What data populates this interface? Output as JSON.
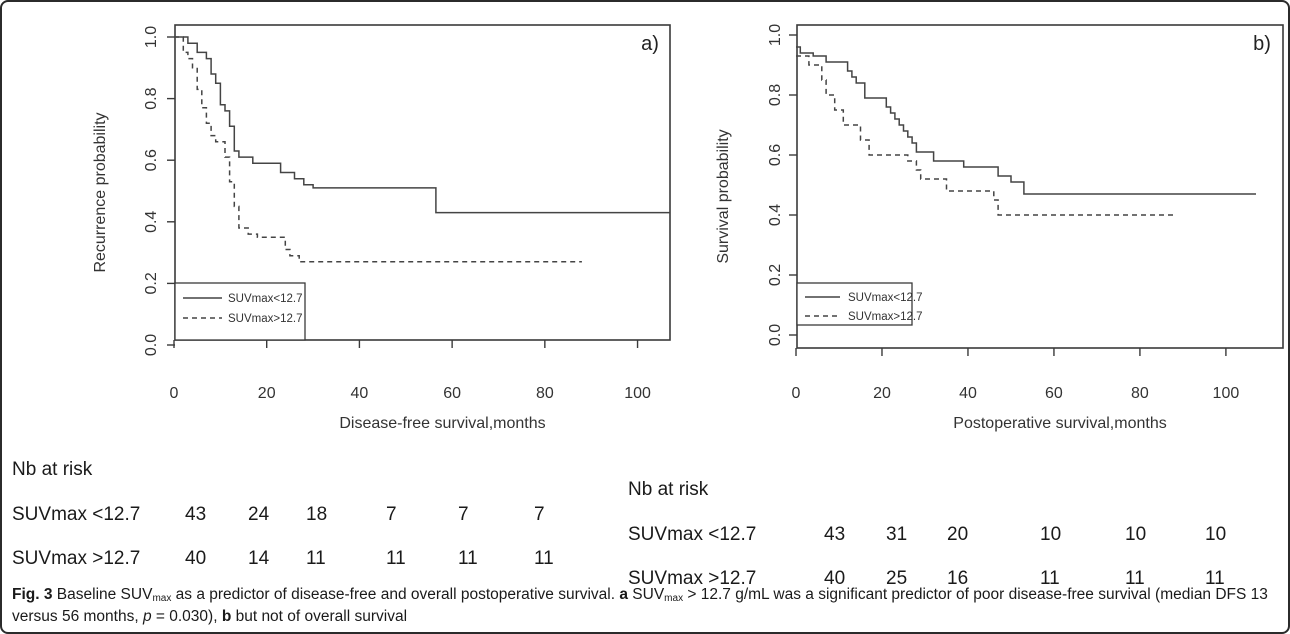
{
  "chart_data": [
    {
      "type": "line",
      "panel_label": "a)",
      "xlabel": "Disease-free survival,months",
      "ylabel": "Recurrence probability",
      "xlim": [
        0,
        110
      ],
      "ylim": [
        0,
        1
      ],
      "x_ticks": [
        "0",
        "20",
        "40",
        "60",
        "80",
        "100"
      ],
      "y_ticks": [
        "0.0",
        "0.2",
        "0.4",
        "0.6",
        "0.8",
        "1.0"
      ],
      "legend_position": "bottom-left",
      "series": [
        {
          "name": "SUVmax<12.7",
          "style": "solid",
          "steps": [
            [
              0,
              1.0
            ],
            [
              3,
              0.98
            ],
            [
              5,
              0.95
            ],
            [
              7,
              0.93
            ],
            [
              8,
              0.88
            ],
            [
              9,
              0.85
            ],
            [
              10,
              0.78
            ],
            [
              11,
              0.76
            ],
            [
              12,
              0.71
            ],
            [
              13,
              0.63
            ],
            [
              14,
              0.61
            ],
            [
              17,
              0.59
            ],
            [
              23,
              0.56
            ],
            [
              26,
              0.54
            ],
            [
              28,
              0.52
            ],
            [
              30,
              0.51
            ],
            [
              56,
              0.51
            ],
            [
              56.5,
              0.43
            ],
            [
              107,
              0.43
            ]
          ]
        },
        {
          "name": "SUVmax>12.7",
          "style": "dashed",
          "steps": [
            [
              0,
              1.0
            ],
            [
              2,
              0.95
            ],
            [
              3,
              0.93
            ],
            [
              4,
              0.9
            ],
            [
              5,
              0.83
            ],
            [
              6,
              0.77
            ],
            [
              7,
              0.72
            ],
            [
              8,
              0.68
            ],
            [
              9,
              0.66
            ],
            [
              11,
              0.61
            ],
            [
              12,
              0.53
            ],
            [
              13,
              0.45
            ],
            [
              14,
              0.38
            ],
            [
              16,
              0.36
            ],
            [
              18,
              0.35
            ],
            [
              24,
              0.31
            ],
            [
              25,
              0.29
            ],
            [
              27,
              0.27
            ],
            [
              88,
              0.27
            ]
          ]
        }
      ]
    },
    {
      "type": "line",
      "panel_label": "b)",
      "xlabel": "Postoperative survival,months",
      "ylabel": "Survival probability",
      "xlim": [
        0,
        110
      ],
      "ylim": [
        0,
        1
      ],
      "x_ticks": [
        "0",
        "20",
        "40",
        "60",
        "80",
        "100"
      ],
      "y_ticks": [
        "0.0",
        "0.2",
        "0.4",
        "0.6",
        "0.8",
        "1.0"
      ],
      "legend_position": "bottom-left",
      "series": [
        {
          "name": "SUVmax<12.7",
          "style": "solid",
          "steps": [
            [
              0,
              0.96
            ],
            [
              1,
              0.94
            ],
            [
              4,
              0.93
            ],
            [
              7,
              0.91
            ],
            [
              12,
              0.88
            ],
            [
              13,
              0.86
            ],
            [
              14,
              0.84
            ],
            [
              16,
              0.79
            ],
            [
              21,
              0.76
            ],
            [
              22,
              0.74
            ],
            [
              23,
              0.72
            ],
            [
              24,
              0.7
            ],
            [
              25,
              0.68
            ],
            [
              26,
              0.66
            ],
            [
              27,
              0.64
            ],
            [
              28,
              0.61
            ],
            [
              32,
              0.58
            ],
            [
              39,
              0.56
            ],
            [
              47,
              0.53
            ],
            [
              50,
              0.51
            ],
            [
              53,
              0.47
            ],
            [
              107,
              0.47
            ]
          ]
        },
        {
          "name": "SUVmax>12.7",
          "style": "dashed",
          "steps": [
            [
              0,
              0.93
            ],
            [
              3,
              0.9
            ],
            [
              6,
              0.85
            ],
            [
              7,
              0.8
            ],
            [
              9,
              0.75
            ],
            [
              11,
              0.7
            ],
            [
              15,
              0.65
            ],
            [
              17,
              0.6
            ],
            [
              26,
              0.58
            ],
            [
              28,
              0.55
            ],
            [
              29,
              0.52
            ],
            [
              35,
              0.48
            ],
            [
              46,
              0.45
            ],
            [
              47,
              0.4
            ],
            [
              88,
              0.4
            ]
          ]
        }
      ]
    }
  ],
  "risk_tables": [
    {
      "title": "Nb at risk",
      "rows": [
        {
          "label": "SUVmax <12.7",
          "values": [
            "43",
            "24",
            "18",
            "7",
            "7",
            "7"
          ]
        },
        {
          "label": "SUVmax >12.7",
          "values": [
            "40",
            "14",
            "11",
            "11",
            "11",
            "11"
          ]
        }
      ]
    },
    {
      "title": "Nb at risk",
      "rows": [
        {
          "label": "SUVmax <12.7",
          "values": [
            "43",
            "31",
            "20",
            "10",
            "10",
            "10"
          ]
        },
        {
          "label": "SUVmax >12.7",
          "values": [
            "40",
            "25",
            "16",
            "11",
            "11",
            "11"
          ]
        }
      ]
    }
  ],
  "caption": {
    "fig_label": "Fig. 3",
    "text1": " Baseline SUV",
    "sub1": "max",
    "text2": " as a predictor of disease-free and overall postoperative survival. ",
    "a_label": "a",
    "text3": " SUV",
    "sub2": "max",
    "text4": " > 12.7 g/mL was a significant predictor of poor disease-free survival (median DFS 13 versus 56 months, ",
    "p_label": "p",
    "text5": " = 0.030), ",
    "b_label": "b",
    "text6": " but not of overall survival"
  }
}
